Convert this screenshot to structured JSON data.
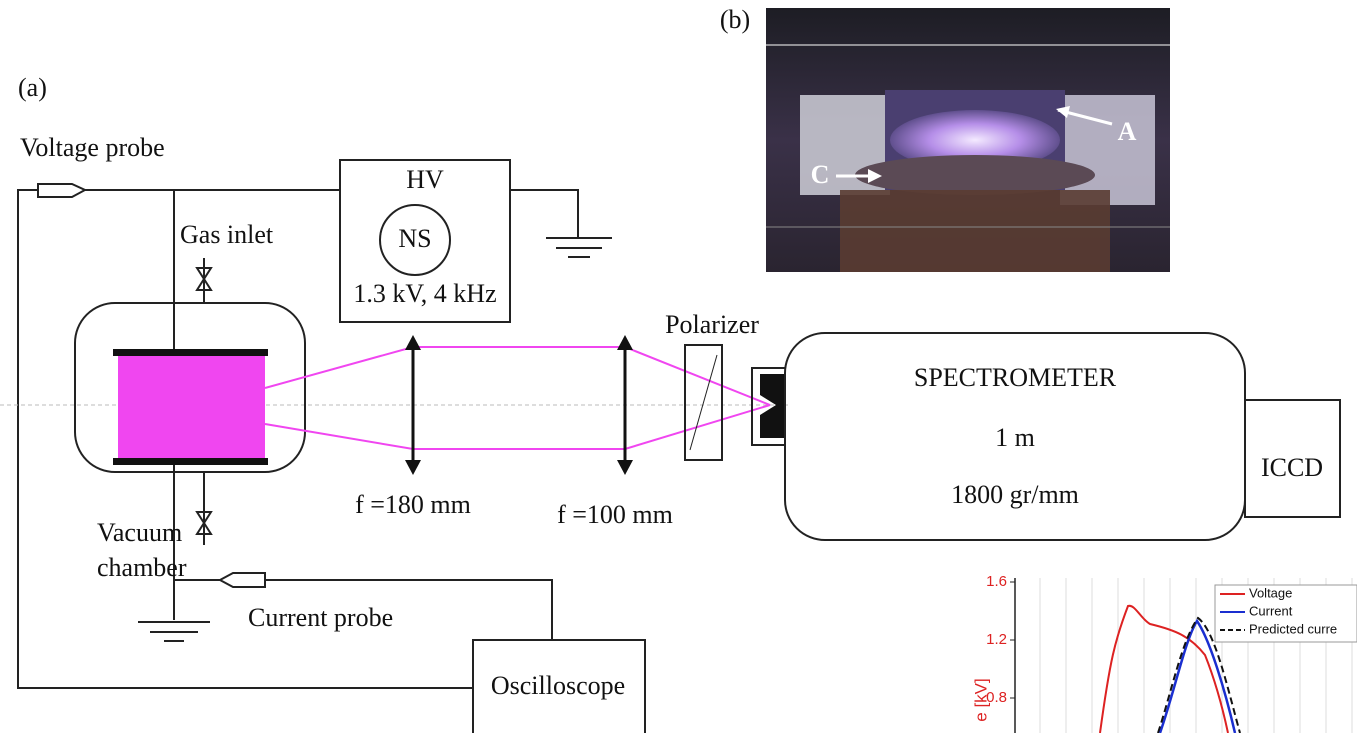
{
  "panel_a": {
    "label": "(a)",
    "voltage_probe": "Voltage probe",
    "hv": {
      "title": "HV",
      "source": "NS",
      "spec": "1.3 kV, 4 kHz"
    },
    "gas_inlet": "Gas inlet",
    "vacuum_chamber": [
      "Vacuum",
      "chamber"
    ],
    "current_probe": "Current probe",
    "oscilloscope": "Oscilloscope",
    "lens_1": "f =180 mm",
    "lens_2": "f =100 mm",
    "polarizer": "Polarizer",
    "spectrometer": {
      "title": "SPECTROMETER",
      "length": "1 m",
      "grating": "1800 gr/mm"
    },
    "detector": "ICCD"
  },
  "panel_b": {
    "label": "(b)",
    "anode": "A",
    "cathode": "C"
  },
  "inset": {
    "ylabel": "e [kV]",
    "yticks": [
      1.6,
      1.2,
      0.8
    ],
    "ylim": [
      0.6,
      1.6
    ],
    "legend": [
      "Voltage",
      "Current",
      "Predicted curre"
    ]
  }
}
